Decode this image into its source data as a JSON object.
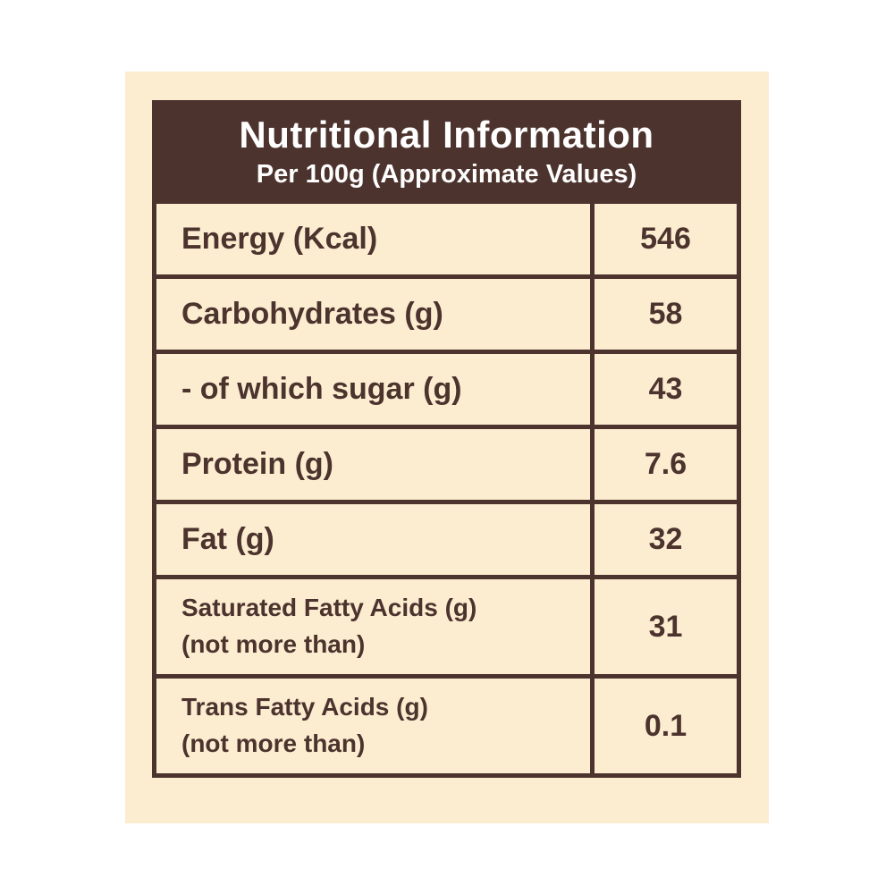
{
  "header": {
    "title": "Nutritional Information",
    "subtitle": "Per 100g (Approximate Values)"
  },
  "colors": {
    "panel_background": "#fcedd1",
    "header_background": "#4c332d",
    "header_text": "#ffffff",
    "border": "#4c332d",
    "cell_text": "#4c332d",
    "page_background": "#ffffff"
  },
  "table": {
    "rows": [
      {
        "label": "Energy (Kcal)",
        "sublabel": "",
        "value": "546"
      },
      {
        "label": "Carbohydrates (g)",
        "sublabel": "",
        "value": "58"
      },
      {
        "label": "- of which sugar (g)",
        "sublabel": "",
        "value": "43"
      },
      {
        "label": "Protein (g)",
        "sublabel": "",
        "value": "7.6"
      },
      {
        "label": "Fat (g)",
        "sublabel": "",
        "value": "32"
      },
      {
        "label": "Saturated Fatty Acids (g)",
        "sublabel": "(not more than)",
        "value": "31"
      },
      {
        "label": "Trans Fatty Acids (g)",
        "sublabel": "(not more than)",
        "value": "0.1"
      }
    ]
  }
}
